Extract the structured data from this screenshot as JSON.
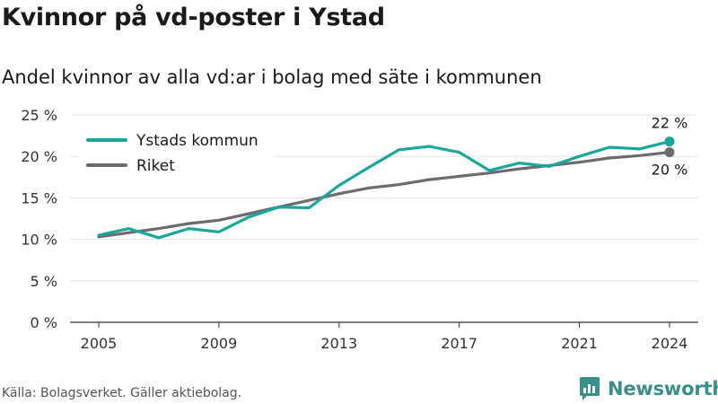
{
  "header": {
    "title": "Kvinnor på vd-poster i Ystad",
    "subtitle": "Andel kvinnor av alla vd:ar i bolag med säte i kommunen"
  },
  "footer": {
    "source": "Källa: Bolagsverket. Gäller aktiebolag.",
    "brand": "Newsworthy",
    "brand_icon": "newsworthy-logo-icon"
  },
  "chart_data": {
    "type": "line",
    "title": "Kvinnor på vd-poster i Ystad",
    "subtitle": "Andel kvinnor av alla vd:ar i bolag med säte i kommunen",
    "x": [
      2005,
      2006,
      2007,
      2008,
      2009,
      2010,
      2011,
      2012,
      2013,
      2014,
      2015,
      2016,
      2017,
      2018,
      2019,
      2020,
      2021,
      2022,
      2023,
      2024
    ],
    "xticks": [
      2005,
      2009,
      2013,
      2017,
      2021,
      2024
    ],
    "xlim": [
      2005,
      2024
    ],
    "ylim": [
      0,
      25
    ],
    "yticks": [
      0,
      5,
      10,
      15,
      20,
      25
    ],
    "ytick_labels": [
      "0 %",
      "5 %",
      "10 %",
      "15 %",
      "20 %",
      "25 %"
    ],
    "grid": true,
    "legend": "top-left",
    "series": [
      {
        "name": "Ystads kommun",
        "color": "#1aa79b",
        "values": [
          10.5,
          11.3,
          10.2,
          11.3,
          10.9,
          12.7,
          13.9,
          13.8,
          16.5,
          18.7,
          20.8,
          21.2,
          20.5,
          18.3,
          19.2,
          18.8,
          20.0,
          21.1,
          20.9,
          21.8
        ],
        "end_label": "22 %"
      },
      {
        "name": "Riket",
        "color": "#6e6b70",
        "values": [
          10.3,
          10.8,
          11.3,
          11.9,
          12.3,
          13.1,
          13.9,
          14.7,
          15.5,
          16.2,
          16.6,
          17.2,
          17.6,
          18.0,
          18.5,
          18.9,
          19.3,
          19.8,
          20.1,
          20.5
        ],
        "end_label": "20 %"
      }
    ]
  }
}
